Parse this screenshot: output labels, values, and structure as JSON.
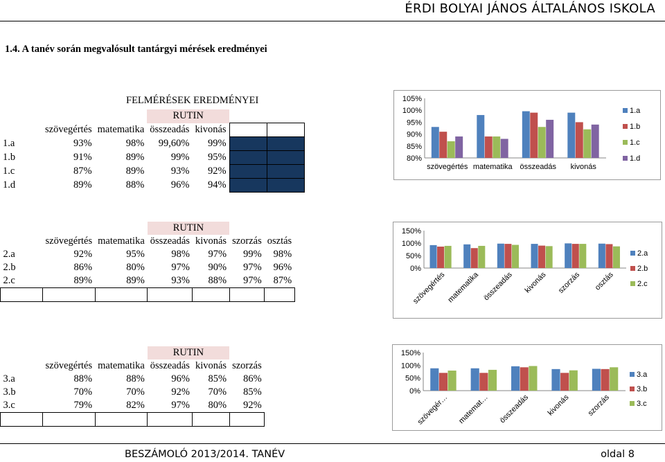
{
  "header": {
    "school": "ÉRDI BOLYAI JÁNOS ÁLTALÁNOS ISKOLA"
  },
  "section": {
    "title": "1.4. A tanév során megvalósult tantárgyi mérések eredményei"
  },
  "block1": {
    "title": "FELMÉRÉSEK EREDMÉNYEI",
    "rutin": "RUTIN",
    "headers": [
      "szövegértés",
      "matematika",
      "összeadás",
      "kivonás"
    ],
    "rows": [
      {
        "label": "1.a",
        "values": [
          "93%",
          "98%",
          "99,60%",
          "99%"
        ]
      },
      {
        "label": "1.b",
        "values": [
          "91%",
          "89%",
          "99%",
          "95%"
        ]
      },
      {
        "label": "1.c",
        "values": [
          "87%",
          "89%",
          "93%",
          "92%"
        ]
      },
      {
        "label": "1.d",
        "values": [
          "89%",
          "88%",
          "96%",
          "94%"
        ]
      }
    ]
  },
  "block2": {
    "rutin": "RUTIN",
    "headers": [
      "szövegértés",
      "matematika",
      "összeadás",
      "kivonás",
      "szorzás",
      "osztás"
    ],
    "rows": [
      {
        "label": "2.a",
        "values": [
          "92%",
          "95%",
          "98%",
          "97%",
          "99%",
          "98%"
        ]
      },
      {
        "label": "2.b",
        "values": [
          "86%",
          "80%",
          "97%",
          "90%",
          "97%",
          "96%"
        ]
      },
      {
        "label": "2.c",
        "values": [
          "89%",
          "89%",
          "93%",
          "88%",
          "97%",
          "87%"
        ]
      }
    ]
  },
  "block3": {
    "rutin": "RUTIN",
    "headers": [
      "szövegértés",
      "matematika",
      "összeadás",
      "kivonás",
      "szorzás"
    ],
    "rows": [
      {
        "label": "3.a",
        "values": [
          "88%",
          "88%",
          "96%",
          "85%",
          "86%"
        ]
      },
      {
        "label": "3.b",
        "values": [
          "70%",
          "70%",
          "92%",
          "70%",
          "85%"
        ]
      },
      {
        "label": "3.c",
        "values": [
          "79%",
          "82%",
          "97%",
          "80%",
          "92%"
        ]
      }
    ]
  },
  "colors": {
    "s1": "#4f81bd",
    "s2": "#c0504d",
    "s3": "#9bbb59",
    "s4": "#8064a2",
    "rutin_bg": "#f2dcdb",
    "dark_cell": "#17375e"
  },
  "chart_data": [
    {
      "type": "bar",
      "categories": [
        "szövegértés",
        "matematika",
        "összeadás",
        "kivonás"
      ],
      "series": [
        {
          "name": "1.a",
          "values": [
            93,
            98,
            99.6,
            99
          ]
        },
        {
          "name": "1.b",
          "values": [
            91,
            89,
            99,
            95
          ]
        },
        {
          "name": "1.c",
          "values": [
            87,
            89,
            93,
            92
          ]
        },
        {
          "name": "1.d",
          "values": [
            89,
            88,
            96,
            94
          ]
        }
      ],
      "ylim": [
        80,
        105
      ],
      "yticks": [
        "80%",
        "85%",
        "90%",
        "95%",
        "100%",
        "105%"
      ],
      "legend": "right",
      "grid": false
    },
    {
      "type": "bar",
      "categories": [
        "szövegértés",
        "matematika",
        "összeadás",
        "kivonás",
        "szorzás",
        "osztás"
      ],
      "series": [
        {
          "name": "2.a",
          "values": [
            92,
            95,
            98,
            97,
            99,
            98
          ]
        },
        {
          "name": "2.b",
          "values": [
            86,
            80,
            97,
            90,
            97,
            96
          ]
        },
        {
          "name": "2.c",
          "values": [
            89,
            89,
            93,
            88,
            97,
            87
          ]
        }
      ],
      "ylim": [
        0,
        150
      ],
      "yticks": [
        "0%",
        "50%",
        "100%",
        "150%"
      ],
      "legend": "right",
      "grid": false
    },
    {
      "type": "bar",
      "categories": [
        "szövegér…",
        "matemat…",
        "összeadás",
        "kivonás",
        "szorzás"
      ],
      "series": [
        {
          "name": "3.a",
          "values": [
            88,
            88,
            96,
            85,
            86
          ]
        },
        {
          "name": "3.b",
          "values": [
            70,
            70,
            92,
            70,
            85
          ]
        },
        {
          "name": "3.c",
          "values": [
            79,
            82,
            97,
            80,
            92
          ]
        }
      ],
      "ylim": [
        0,
        150
      ],
      "yticks": [
        "0%",
        "50%",
        "100%",
        "150%"
      ],
      "legend": "right",
      "grid": false
    }
  ],
  "footer": {
    "left": "BESZÁMOLÓ 2013/2014. TANÉV",
    "right": "oldal 8"
  }
}
